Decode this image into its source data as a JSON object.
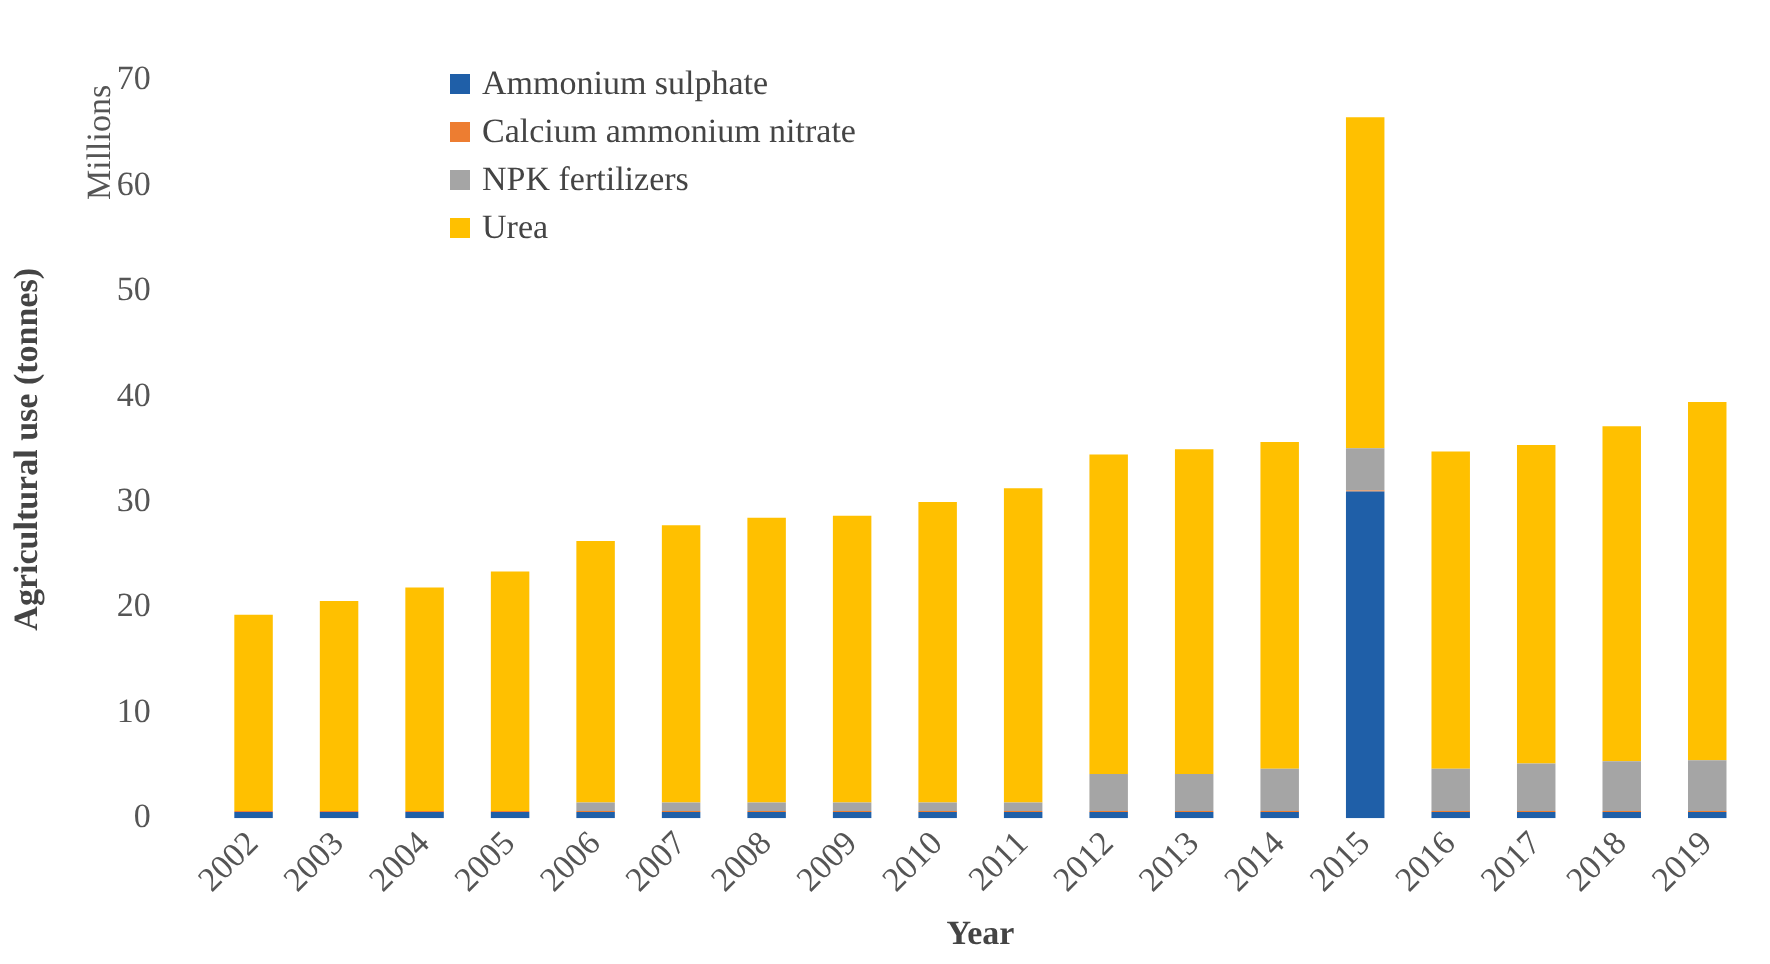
{
  "chart_data": {
    "type": "bar",
    "stacked": true,
    "xlabel": "Year",
    "ylabel": "Agricultural use (tonnes)",
    "annotations": [
      "Millions"
    ],
    "categories": [
      "2002",
      "2003",
      "2004",
      "2005",
      "2006",
      "2007",
      "2008",
      "2009",
      "2010",
      "2011",
      "2012",
      "2013",
      "2014",
      "2015",
      "2016",
      "2017",
      "2018",
      "2019"
    ],
    "series": [
      {
        "name": "Ammonium sulphate",
        "color": "#1f5fa8",
        "values": [
          0.6,
          0.6,
          0.6,
          0.6,
          0.6,
          0.6,
          0.6,
          0.6,
          0.6,
          0.6,
          0.6,
          0.6,
          0.6,
          31,
          0.6,
          0.6,
          0.6,
          0.6
        ]
      },
      {
        "name": "Calcium ammonium nitrate",
        "color": "#ed7d31",
        "values": [
          0.1,
          0.1,
          0.1,
          0.1,
          0.1,
          0.1,
          0.1,
          0.1,
          0.1,
          0.1,
          0.1,
          0.1,
          0.1,
          0.1,
          0.1,
          0.1,
          0.1,
          0.1
        ]
      },
      {
        "name": "NPK fertilizers",
        "color": "#a5a5a5",
        "values": [
          null,
          null,
          null,
          null,
          0.8,
          0.8,
          0.8,
          0.8,
          0.8,
          0.8,
          3.5,
          3.5,
          4,
          4,
          4,
          4.5,
          4.7,
          4.8
        ]
      },
      {
        "name": "Urea",
        "color": "#ffc000",
        "values": [
          18.6,
          19.9,
          21.2,
          22.7,
          24.8,
          26.3,
          27,
          27.2,
          28.5,
          29.8,
          30.3,
          30.8,
          31,
          31.4,
          30.1,
          30.2,
          31.8,
          34
        ]
      }
    ],
    "ylim": [
      0,
      70
    ],
    "yticks": [
      0,
      10,
      20,
      30,
      40,
      50,
      60,
      70
    ],
    "grid": false,
    "legend": "top left"
  }
}
